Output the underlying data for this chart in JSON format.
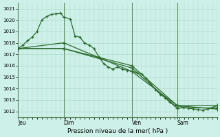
{
  "background_color": "#cdf0e8",
  "grid_color": "#b0d8cc",
  "line_color": "#2d6a2d",
  "xlabel": "Pression niveau de la mer( hPa )",
  "ylim": [
    1011.5,
    1021.5
  ],
  "yticks": [
    1012,
    1013,
    1014,
    1015,
    1016,
    1017,
    1018,
    1019,
    1020,
    1021
  ],
  "day_labels": [
    "Jeu",
    "Dim",
    "Ven",
    "Sam"
  ],
  "day_positions": [
    0.0,
    0.229,
    0.571,
    0.8
  ],
  "vline_positions": [
    0.0,
    0.229,
    0.571,
    0.8
  ],
  "xlim": [
    0,
    1.0
  ],
  "minor_xticks_count": 24,
  "series": [
    {
      "t": [
        0.0,
        0.024,
        0.048,
        0.071,
        0.095,
        0.119,
        0.143,
        0.167,
        0.19,
        0.214,
        0.229,
        0.262,
        0.286,
        0.31,
        0.333,
        0.357,
        0.381,
        0.405,
        0.429,
        0.452,
        0.476,
        0.5,
        0.524,
        0.548,
        0.571,
        0.595,
        0.619,
        0.643,
        0.667,
        0.69,
        0.714,
        0.738,
        0.762,
        0.786,
        0.8,
        0.833,
        0.857,
        0.881,
        0.905,
        0.929,
        0.952,
        0.976,
        1.0
      ],
      "y": [
        1017.5,
        1017.8,
        1018.2,
        1018.5,
        1019.0,
        1020.0,
        1020.3,
        1020.5,
        1020.55,
        1020.6,
        1020.25,
        1020.1,
        1018.6,
        1018.5,
        1018.0,
        1017.8,
        1017.5,
        1016.8,
        1016.2,
        1015.9,
        1015.7,
        1015.9,
        1015.7,
        1015.6,
        1015.5,
        1015.4,
        1015.3,
        1014.9,
        1014.4,
        1013.9,
        1013.5,
        1013.2,
        1012.8,
        1012.5,
        1012.5,
        1012.35,
        1012.3,
        1012.2,
        1012.15,
        1012.1,
        1012.2,
        1012.35,
        1012.5
      ]
    },
    {
      "t": [
        0.0,
        0.229,
        0.571,
        0.8,
        1.0
      ],
      "y": [
        1017.5,
        1018.0,
        1015.5,
        1012.5,
        1012.5
      ]
    },
    {
      "t": [
        0.0,
        0.229,
        0.571,
        0.8,
        1.0
      ],
      "y": [
        1017.5,
        1017.5,
        1015.8,
        1012.3,
        1012.3
      ]
    },
    {
      "t": [
        0.0,
        0.229,
        0.571,
        0.8,
        1.0
      ],
      "y": [
        1017.5,
        1017.5,
        1016.0,
        1012.5,
        1012.2
      ]
    }
  ]
}
